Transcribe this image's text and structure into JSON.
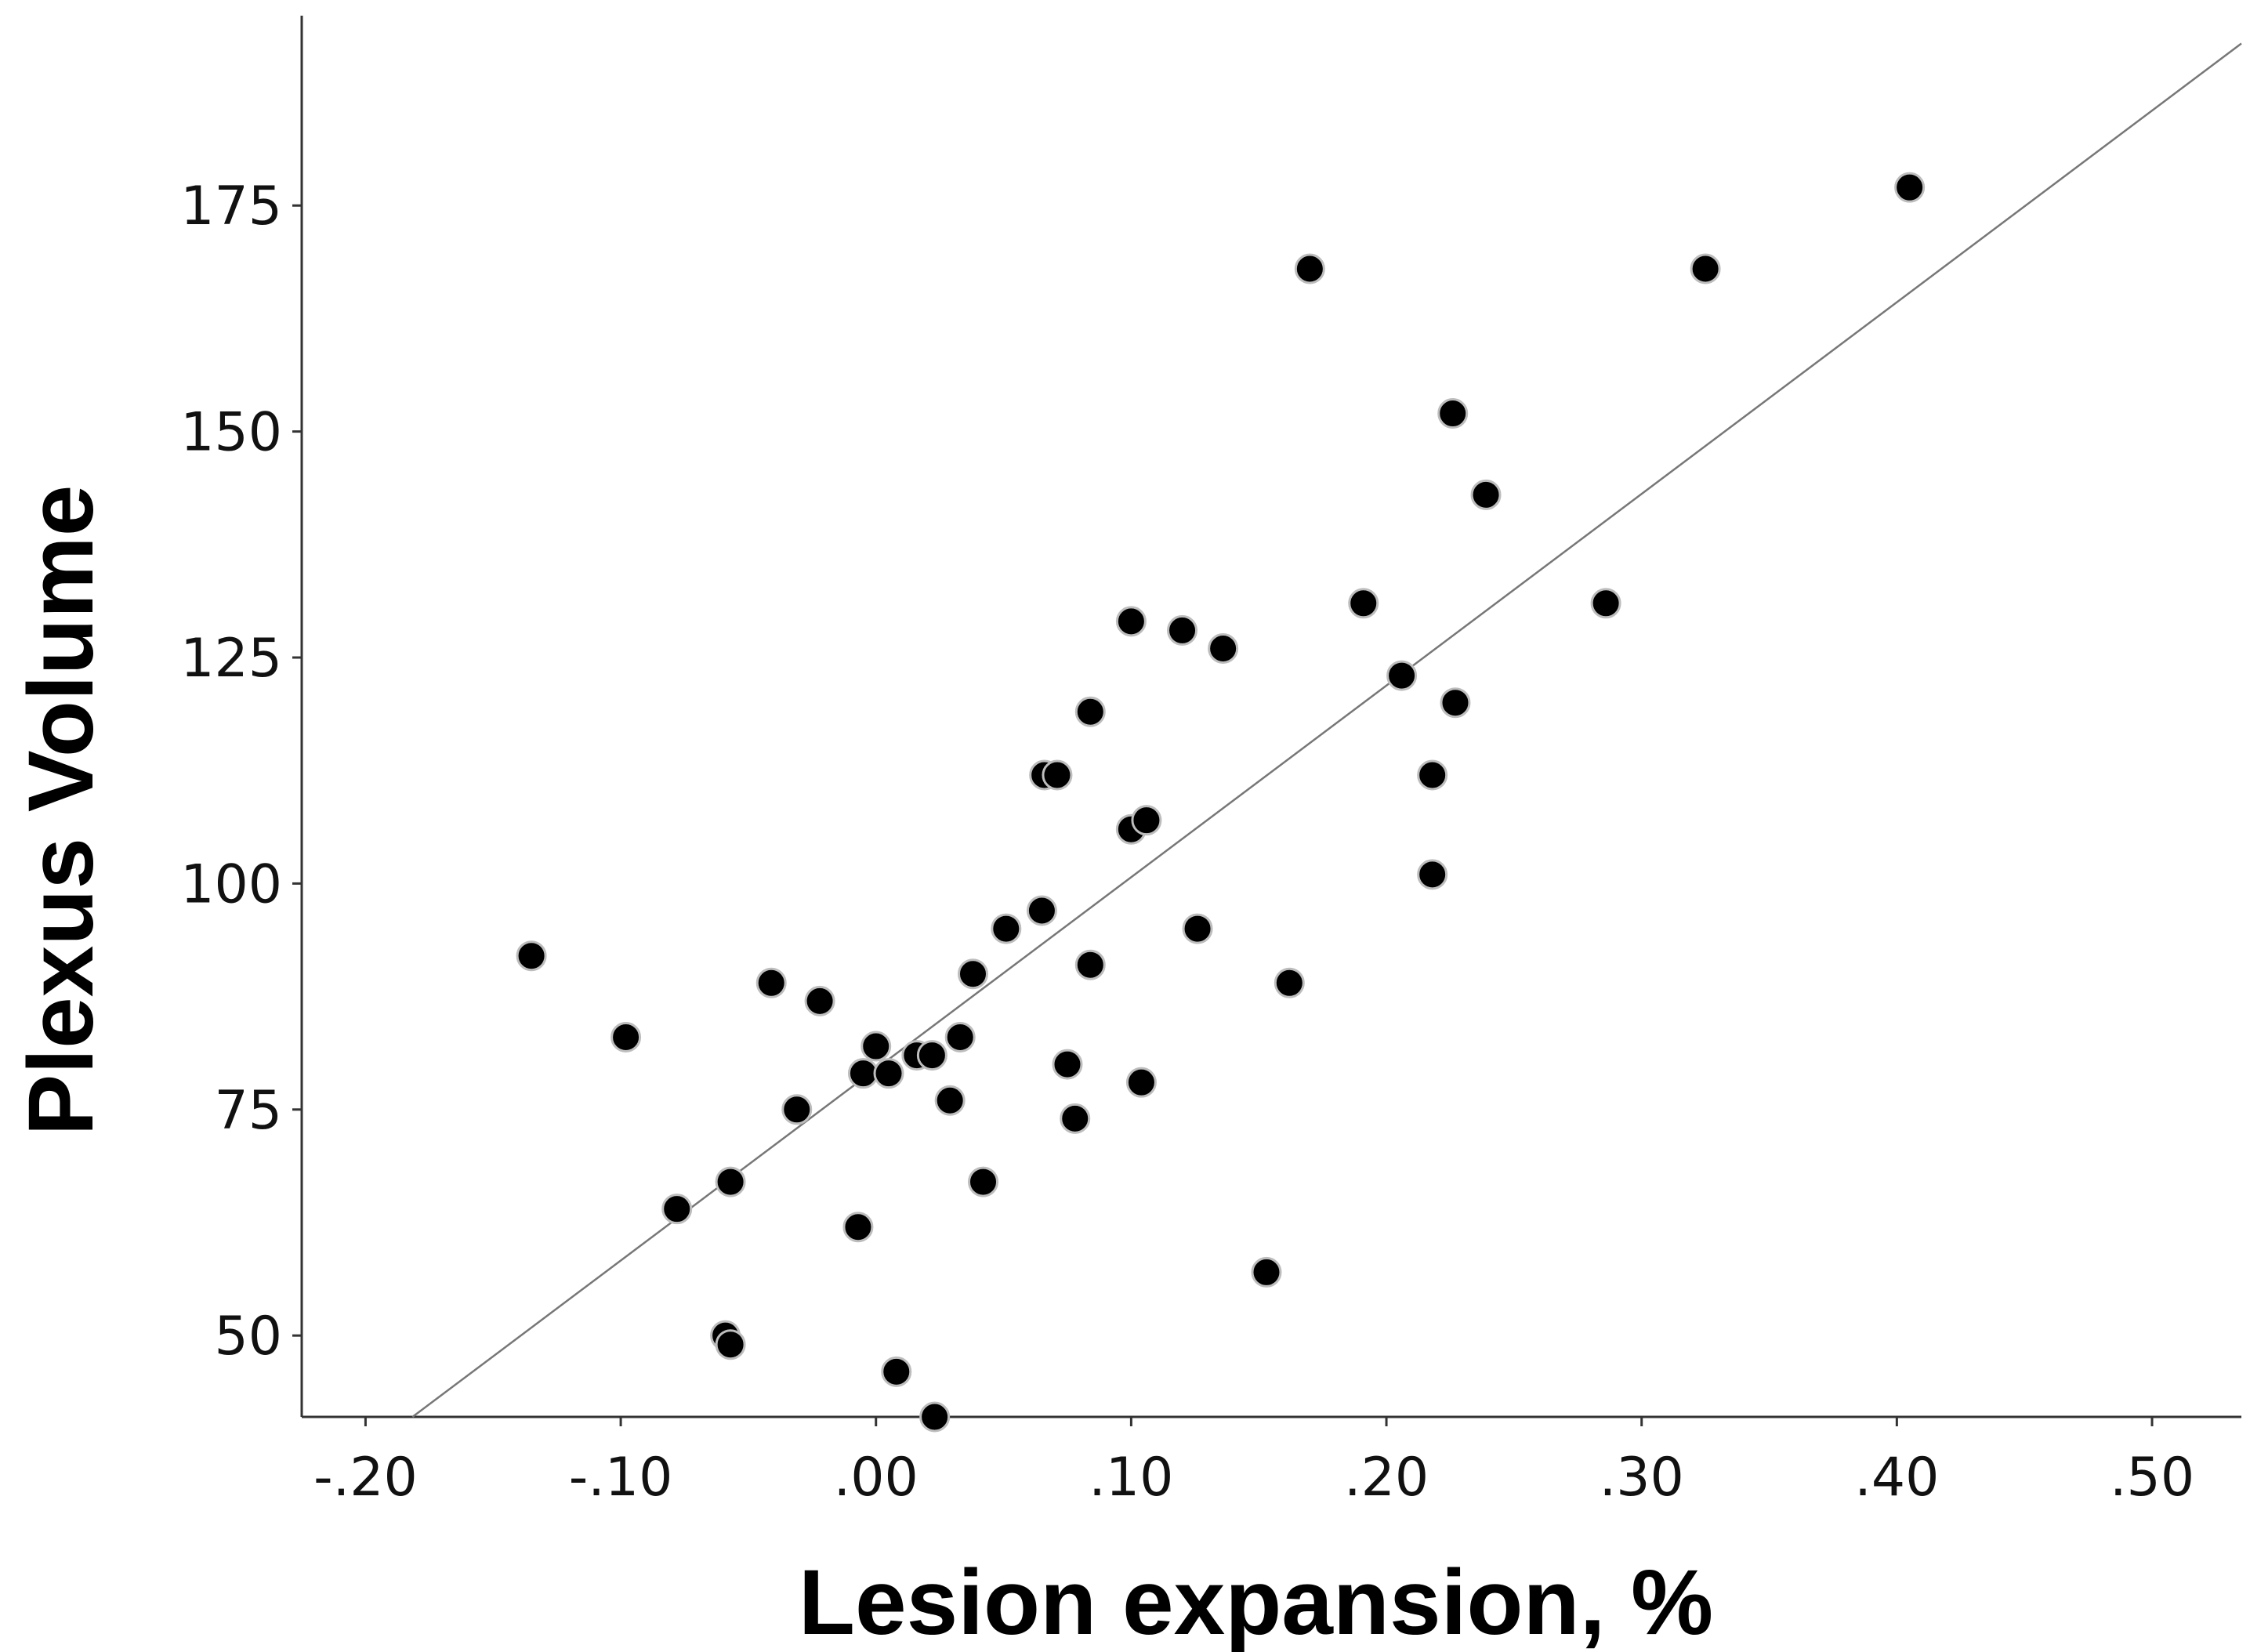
{
  "chart_data": {
    "type": "scatter",
    "xlabel": "Lesion expansion, %",
    "ylabel": "Plexus Volume",
    "xlim": [
      -0.225,
      0.535
    ],
    "ylim": [
      41,
      196
    ],
    "x_ticks": [
      -0.2,
      -0.1,
      0.0,
      0.1,
      0.2,
      0.3,
      0.4,
      0.5
    ],
    "x_tick_labels": [
      "-.20",
      "-.10",
      ".00",
      ".10",
      ".20",
      ".30",
      ".40",
      ".50"
    ],
    "y_ticks": [
      50,
      75,
      100,
      125,
      150,
      175
    ],
    "y_tick_labels": [
      "50",
      "75",
      "100",
      "125",
      "150",
      "175"
    ],
    "grid": false,
    "legend": "none",
    "fit_line": {
      "slope": 212,
      "intercept": 79.5
    },
    "colors": {
      "points": "#000000",
      "point_edge": "#bdbdbd",
      "fit_line": "#777777",
      "axes": "#333333"
    },
    "series": [
      {
        "x": [
          -0.135,
          -0.098,
          -0.078,
          -0.059,
          -0.057,
          -0.057,
          -0.041,
          -0.031,
          -0.022,
          -0.007,
          -0.005,
          0.0,
          0.005,
          0.008,
          0.016,
          0.022,
          0.023,
          0.029,
          0.033,
          0.038,
          0.042,
          0.051,
          0.065,
          0.066,
          0.071,
          0.075,
          0.078,
          0.084,
          0.084,
          0.1,
          0.1,
          0.104,
          0.106,
          0.12,
          0.126,
          0.136,
          0.153,
          0.162,
          0.17,
          0.191,
          0.206,
          0.218,
          0.218,
          0.226,
          0.227,
          0.239,
          0.286,
          0.325,
          0.405
        ],
        "y": [
          92,
          83,
          64,
          50,
          49,
          67,
          89,
          75,
          87,
          62,
          79,
          82,
          79,
          46,
          81,
          81,
          41,
          76,
          83,
          90,
          67,
          95,
          97,
          112,
          112,
          80,
          74,
          91,
          119,
          106,
          129,
          78,
          107,
          128,
          95,
          126,
          57,
          89,
          168,
          131,
          123,
          101,
          112,
          152,
          120,
          143,
          131,
          168,
          177
        ]
      }
    ]
  }
}
